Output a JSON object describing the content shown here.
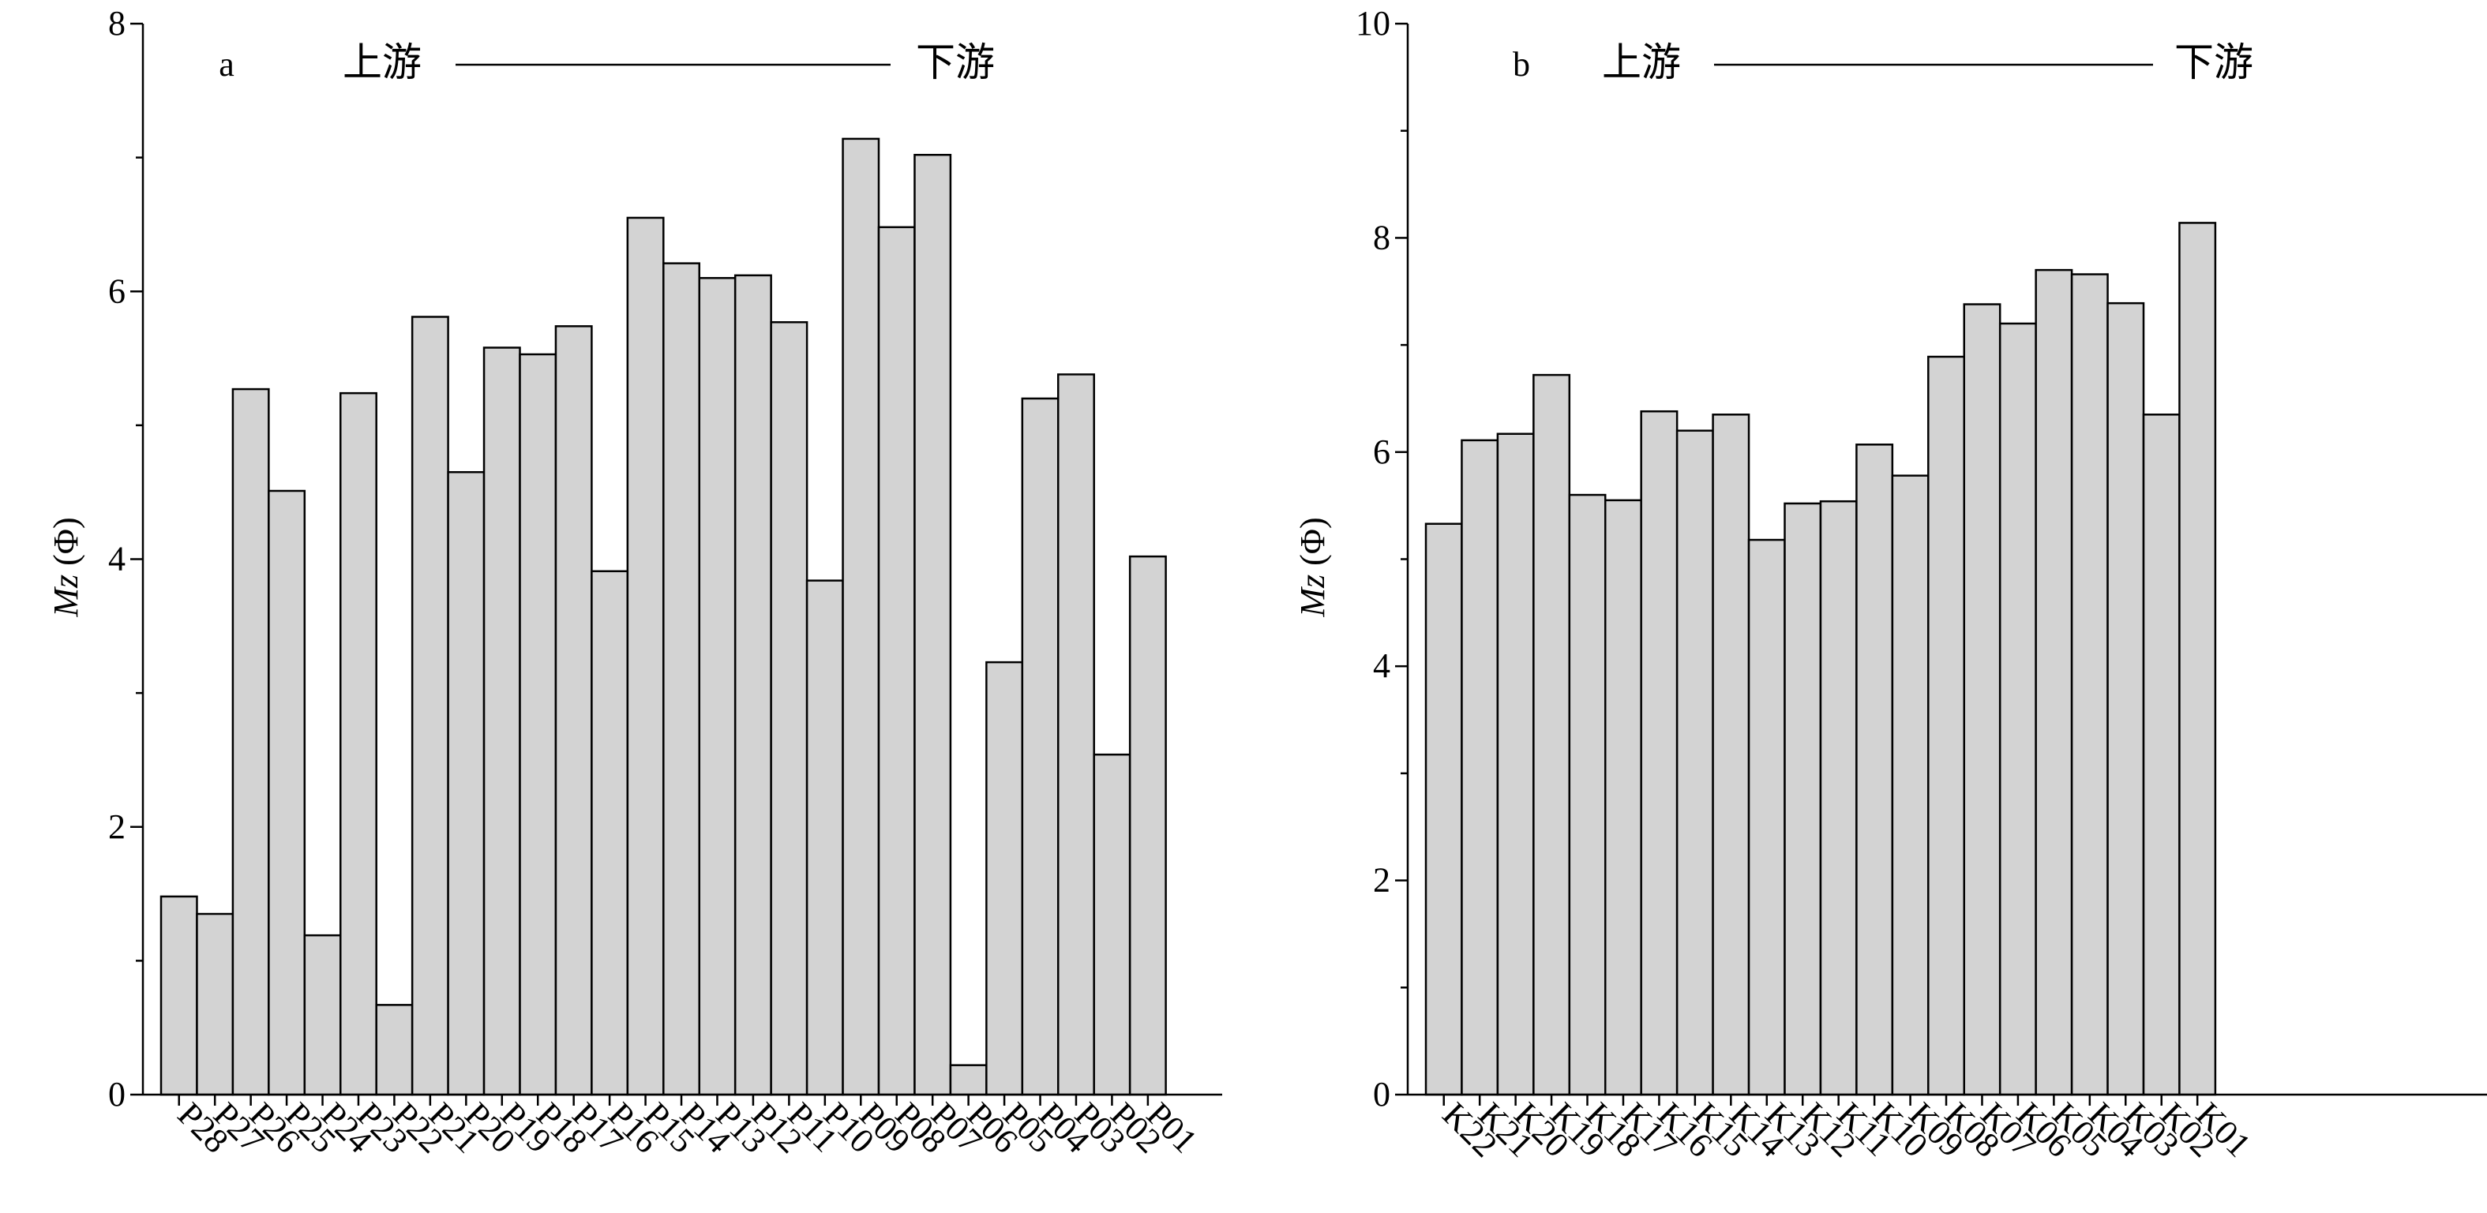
{
  "colors": {
    "bar_fill": "#d3d3d3",
    "bar_stroke": "#000000",
    "axis": "#000000"
  },
  "chart_data": [
    {
      "type": "bar",
      "panel_label": "a",
      "upstream_label": "上游",
      "downstream_label": "下游",
      "ylabel_italic": "Mz",
      "ylabel_unit": "(Φ)",
      "ylim": [
        0,
        8
      ],
      "yticks": [
        0,
        2,
        4,
        6,
        8
      ],
      "grid": false,
      "categories": [
        "P28",
        "P27",
        "P26",
        "P25",
        "P24",
        "P23",
        "P22",
        "P21",
        "P20",
        "P19",
        "P18",
        "P17",
        "P16",
        "P15",
        "P14",
        "P13",
        "P12",
        "P11",
        "P10",
        "P09",
        "P08",
        "P07",
        "P06",
        "P05",
        "P04",
        "P03",
        "P02",
        "P01"
      ],
      "values": [
        1.48,
        1.35,
        5.27,
        4.51,
        1.19,
        5.24,
        0.67,
        5.81,
        4.65,
        5.58,
        5.53,
        5.74,
        3.91,
        6.55,
        6.21,
        6.1,
        6.12,
        5.77,
        3.84,
        7.14,
        6.48,
        7.02,
        0.22,
        3.23,
        5.2,
        5.38,
        2.54,
        4.02
      ]
    },
    {
      "type": "bar",
      "panel_label": "b",
      "upstream_label": "上游",
      "downstream_label": "下游",
      "ylabel_italic": "Mz",
      "ylabel_unit": "(Φ)",
      "ylim": [
        0,
        10
      ],
      "yticks": [
        0,
        2,
        4,
        6,
        8,
        10
      ],
      "grid": false,
      "categories": [
        "K22",
        "K21",
        "K20",
        "K19",
        "K18",
        "K17",
        "K16",
        "K15",
        "K14",
        "K13",
        "K12",
        "K11",
        "K10",
        "K09",
        "K08",
        "K07",
        "K06",
        "K05",
        "K04",
        "K03",
        "K02",
        "K01"
      ],
      "values": [
        5.33,
        6.11,
        6.17,
        6.72,
        5.6,
        5.55,
        6.38,
        6.2,
        6.35,
        5.18,
        5.52,
        5.54,
        6.07,
        5.78,
        6.89,
        7.38,
        7.2,
        7.7,
        7.66,
        7.39,
        6.35,
        8.14
      ]
    }
  ]
}
